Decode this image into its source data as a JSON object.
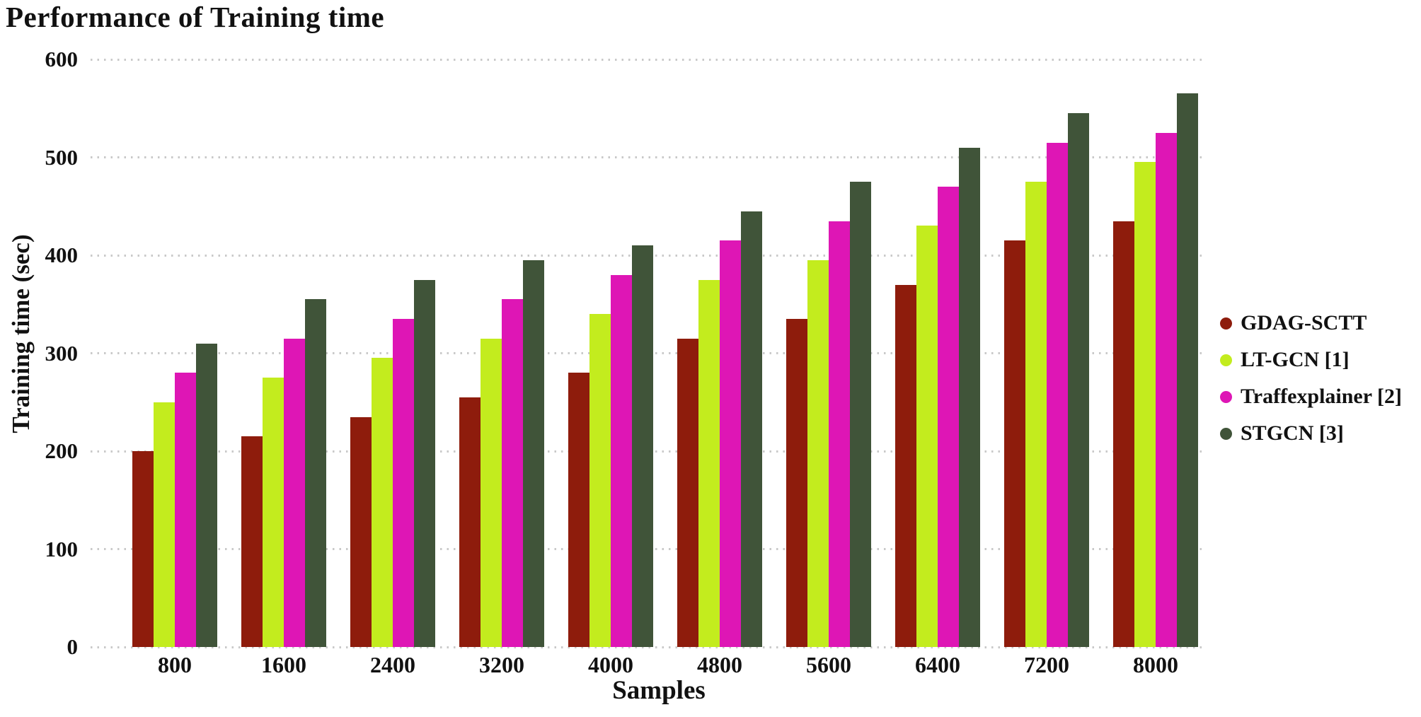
{
  "chart_data": {
    "type": "bar",
    "title": "Performance of Training time",
    "xlabel": "Samples",
    "ylabel": "Training time (sec)",
    "categories": [
      "800",
      "1600",
      "2400",
      "3200",
      "4000",
      "4800",
      "5600",
      "6400",
      "7200",
      "8000"
    ],
    "series": [
      {
        "name": "GDAG-SCTT",
        "color": "#8e1c0c",
        "values": [
          200,
          215,
          235,
          255,
          280,
          315,
          335,
          370,
          415,
          435
        ]
      },
      {
        "name": "LT-GCN [1]",
        "color": "#c3ec1e",
        "values": [
          250,
          275,
          295,
          315,
          340,
          375,
          395,
          430,
          475,
          495
        ]
      },
      {
        "name": "Traffexplainer [2]",
        "color": "#de16b5",
        "values": [
          280,
          315,
          335,
          355,
          380,
          415,
          435,
          470,
          515,
          525
        ]
      },
      {
        "name": "STGCN [3]",
        "color": "#405439",
        "values": [
          310,
          355,
          375,
          395,
          410,
          445,
          475,
          510,
          545,
          565
        ]
      }
    ],
    "ylim": [
      0,
      600
    ],
    "ytick_step": 100,
    "yticks": [
      "0",
      "100",
      "200",
      "300",
      "400",
      "500",
      "600"
    ],
    "grid": "horizontal-dotted",
    "legend_position": "right",
    "colors": {
      "grid": "#c9c9c9",
      "text": "#111111",
      "background": "#ffffff"
    }
  }
}
